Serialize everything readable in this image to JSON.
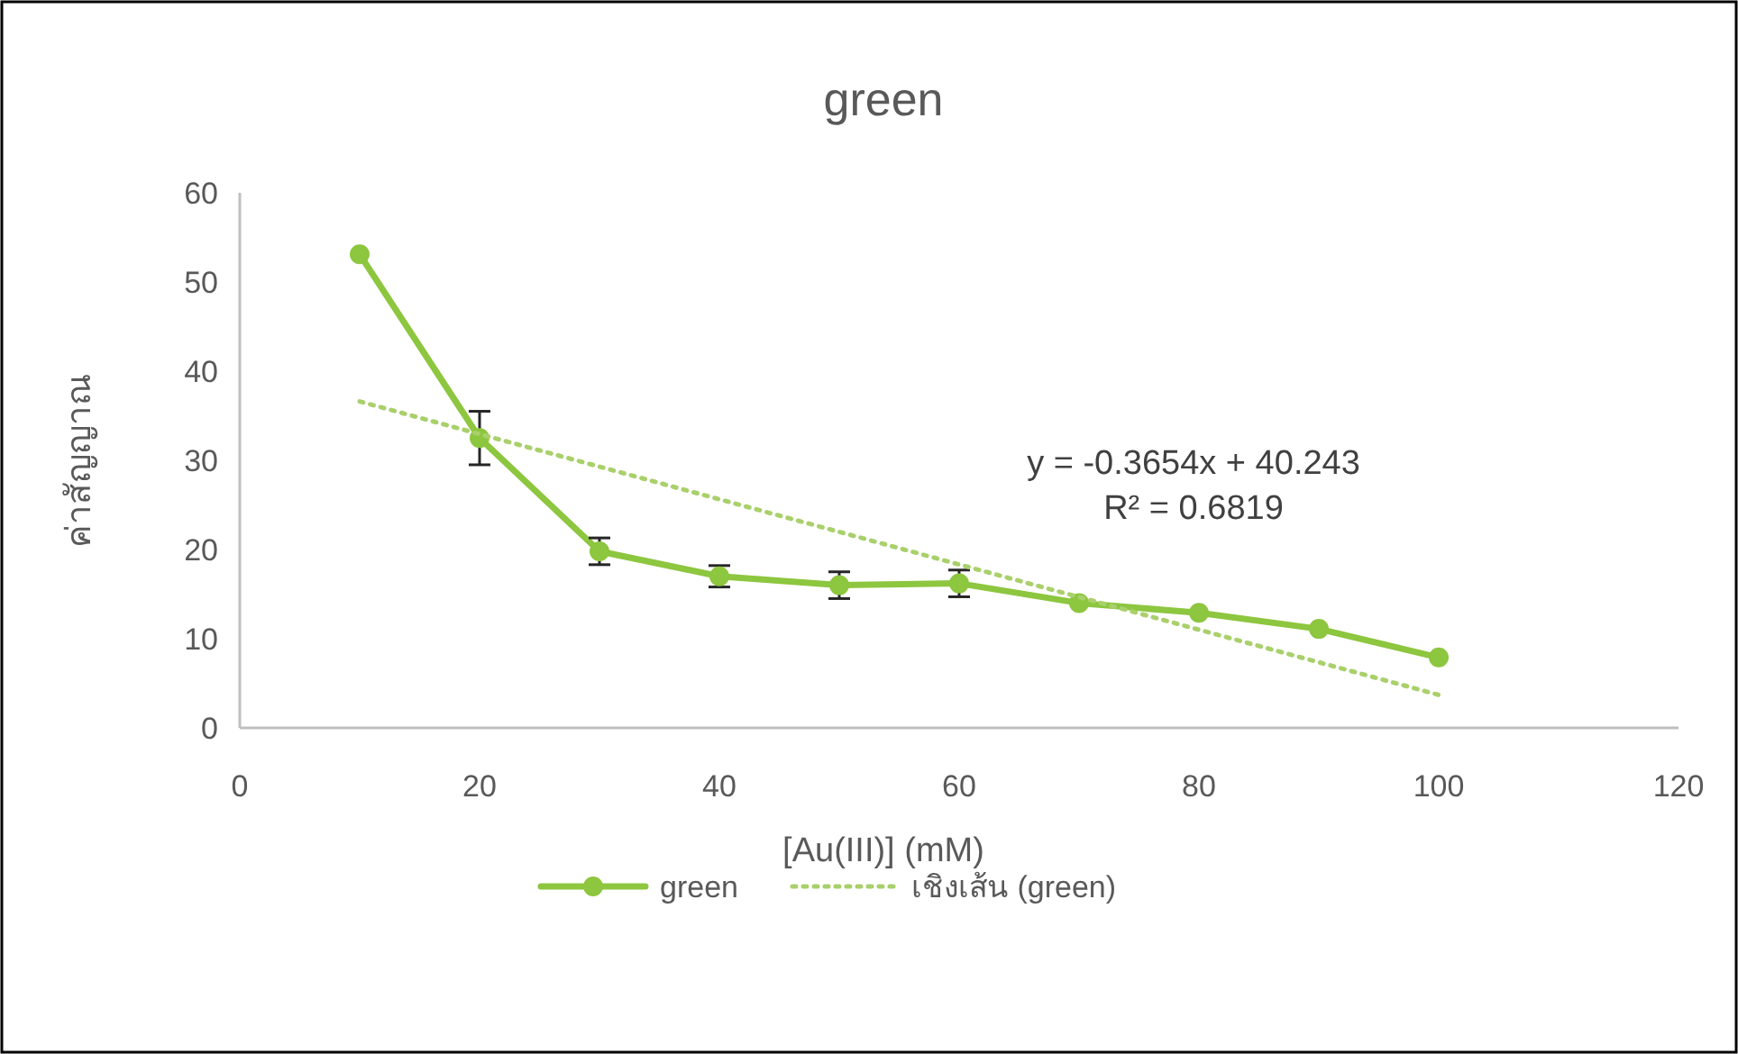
{
  "chart_data": {
    "type": "line",
    "title": "green",
    "xlabel": "[Au(III)] (mM)",
    "ylabel": "ค่าสัญญาณ",
    "xlim": [
      0,
      120
    ],
    "xticks": [
      0,
      20,
      40,
      60,
      80,
      100,
      120
    ],
    "ylim": [
      0,
      60
    ],
    "yticks": [
      0,
      10,
      20,
      30,
      40,
      50,
      60
    ],
    "legend": "bottom",
    "annotations": [
      "y = -0.3654x + 40.243",
      "R² = 0.6819"
    ],
    "series": [
      {
        "name": "green",
        "color": "#8dc63f",
        "x": [
          10,
          20,
          30,
          40,
          50,
          60,
          70,
          80,
          90,
          100
        ],
        "values": [
          53.1,
          32.5,
          19.8,
          17.0,
          16.0,
          16.2,
          14.0,
          12.9,
          11.1,
          7.9
        ],
        "errors": [
          null,
          3,
          1.5,
          1.2,
          1.5,
          1.5,
          null,
          null,
          null,
          null
        ],
        "marker": "circle",
        "line_style": "solid"
      },
      {
        "name": "เชิงเส้น (green)",
        "type": "line",
        "color": "#a9d06b",
        "x": [
          10,
          100
        ],
        "values": [
          36.6,
          3.7
        ],
        "marker": "none",
        "line_style": "dotted"
      }
    ]
  }
}
